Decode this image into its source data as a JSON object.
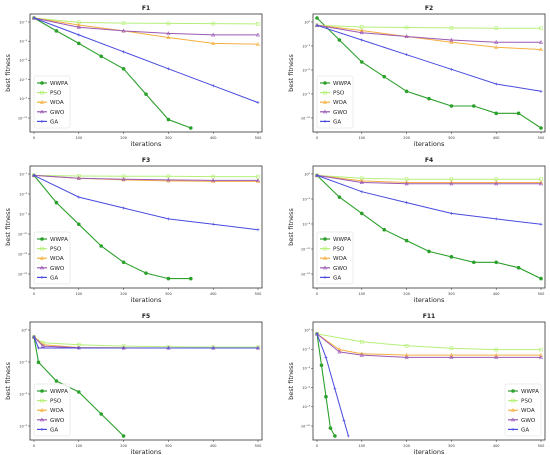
{
  "figure": {
    "series_names": [
      "WWPA",
      "PSO",
      "WOA",
      "GWO",
      "GA"
    ],
    "series_colors": [
      "#2ca02c",
      "#b6f07a",
      "#f5b041",
      "#9b59b6",
      "#4a4ae0"
    ],
    "xticks": [
      "0",
      "100",
      "200",
      "300",
      "400",
      "500"
    ],
    "xlabel": "iterations",
    "ylabel": "best fitness"
  },
  "chart_data": [
    {
      "type": "line",
      "title": "F1",
      "xlabel": "iterations",
      "ylabel": "best fitness",
      "yscale": "log",
      "xlim": [
        0,
        500
      ],
      "ylim": [
        1e-10,
        1000.0
      ],
      "legend": "lower-left",
      "yticks": [
        "10⁻¹",
        "10⁻³",
        "10⁻⁵",
        "10⁻⁷",
        "10⁻⁹",
        "10⁻¹¹"
      ],
      "series": [
        {
          "name": "WWPA",
          "x": [
            0,
            50,
            100,
            150,
            200,
            250,
            300,
            350
          ],
          "y": [
            1000,
            30,
            1,
            0.03,
            0.001,
            1e-06,
            1e-09,
            1e-10
          ]
        },
        {
          "name": "PSO",
          "x": [
            0,
            100,
            200,
            300,
            400,
            500
          ],
          "y": [
            1000,
            300,
            250,
            230,
            220,
            200
          ]
        },
        {
          "name": "WOA",
          "x": [
            0,
            100,
            200,
            300,
            400,
            500
          ],
          "y": [
            1000,
            150,
            30,
            5,
            1,
            0.8
          ]
        },
        {
          "name": "GWO",
          "x": [
            0,
            100,
            200,
            300,
            400,
            500
          ],
          "y": [
            1000,
            80,
            30,
            15,
            10,
            10
          ]
        },
        {
          "name": "GA",
          "x": [
            0,
            100,
            200,
            300,
            400,
            500
          ],
          "y": [
            1000,
            10,
            0.1,
            0.001,
            1e-05,
            1e-07
          ]
        }
      ]
    },
    {
      "type": "line",
      "title": "F2",
      "xlabel": "iterations",
      "ylabel": "best fitness",
      "yscale": "log",
      "xlim": [
        0,
        500
      ],
      "ylim": [
        1e-12,
        1000.0
      ],
      "legend": "lower-left",
      "yticks": [
        "10⁰",
        "10⁻³",
        "10⁻⁶",
        "10⁻⁹",
        "10⁻¹²"
      ],
      "series": [
        {
          "name": "WWPA",
          "x": [
            0,
            50,
            100,
            150,
            200,
            250,
            300,
            350,
            400,
            450,
            500
          ],
          "y": [
            1000,
            1,
            0.001,
            1e-05,
            1e-07,
            1e-08,
            1e-09,
            1e-09,
            1e-10,
            1e-10,
            1e-12
          ]
        },
        {
          "name": "PSO",
          "x": [
            0,
            100,
            200,
            300,
            400,
            500
          ],
          "y": [
            100,
            60,
            50,
            45,
            40,
            40
          ]
        },
        {
          "name": "WOA",
          "x": [
            0,
            100,
            200,
            300,
            400,
            500
          ],
          "y": [
            100,
            20,
            3,
            0.5,
            0.1,
            0.05
          ]
        },
        {
          "name": "GWO",
          "x": [
            0,
            100,
            200,
            300,
            400,
            500
          ],
          "y": [
            100,
            10,
            3,
            1,
            0.5,
            0.5
          ]
        },
        {
          "name": "GA",
          "x": [
            0,
            100,
            200,
            300,
            400,
            500
          ],
          "y": [
            100,
            1,
            0.01,
            0.0001,
            1e-06,
            1e-07
          ]
        }
      ]
    },
    {
      "type": "line",
      "title": "F3",
      "xlabel": "iterations",
      "ylabel": "best fitness",
      "yscale": "log",
      "xlim": [
        0,
        500
      ],
      "ylim": [
        1e-18,
        1000.0
      ],
      "legend": "lower-left",
      "yticks": [
        "10⁻¹",
        "10⁻⁴",
        "10⁻⁷",
        "10⁻¹⁰",
        "10⁻¹³",
        "10⁻¹⁶"
      ],
      "series": [
        {
          "name": "WWPA",
          "x": [
            0,
            50,
            100,
            150,
            200,
            250,
            300,
            350
          ],
          "y": [
            100,
            0.001,
            1e-07,
            1e-11,
            1e-14,
            1e-16,
            1e-17,
            1e-17
          ]
        },
        {
          "name": "PSO",
          "x": [
            0,
            100,
            200,
            300,
            400,
            500
          ],
          "y": [
            100,
            80,
            70,
            70,
            60,
            60
          ]
        },
        {
          "name": "WOA",
          "x": [
            0,
            100,
            200,
            300,
            400,
            500
          ],
          "y": [
            100,
            30,
            15,
            10,
            8,
            8
          ]
        },
        {
          "name": "GWO",
          "x": [
            0,
            100,
            200,
            300,
            400,
            500
          ],
          "y": [
            100,
            30,
            20,
            15,
            12,
            12
          ]
        },
        {
          "name": "GA",
          "x": [
            0,
            100,
            200,
            300,
            400,
            500
          ],
          "y": [
            100,
            0.01,
            0.0001,
            1e-06,
            1e-07,
            1e-08
          ]
        }
      ]
    },
    {
      "type": "line",
      "title": "F4",
      "xlabel": "iterations",
      "ylabel": "best fitness",
      "yscale": "log",
      "xlim": [
        0,
        500
      ],
      "ylim": [
        1e-19,
        100.0
      ],
      "legend": "lower-left",
      "yticks": [
        "10⁰",
        "10⁻⁴",
        "10⁻⁸",
        "10⁻¹²",
        "10⁻¹⁶"
      ],
      "series": [
        {
          "name": "WWPA",
          "x": [
            0,
            50,
            100,
            150,
            200,
            250,
            300,
            350,
            400,
            450,
            500
          ],
          "y": [
            10,
            0.001,
            1e-06,
            1e-09,
            1e-11,
            1e-13,
            1e-14,
            1e-15,
            1e-15,
            1e-16,
            1e-18
          ]
        },
        {
          "name": "PSO",
          "x": [
            0,
            100,
            200,
            300,
            400,
            500
          ],
          "y": [
            10,
            3,
            2,
            2,
            2,
            2
          ]
        },
        {
          "name": "WOA",
          "x": [
            0,
            100,
            200,
            300,
            400,
            500
          ],
          "y": [
            10,
            1,
            0.5,
            0.5,
            0.5,
            0.5
          ]
        },
        {
          "name": "GWO",
          "x": [
            0,
            100,
            200,
            300,
            400,
            500
          ],
          "y": [
            10,
            0.5,
            0.3,
            0.3,
            0.3,
            0.3
          ]
        },
        {
          "name": "GA",
          "x": [
            0,
            100,
            200,
            300,
            400,
            500
          ],
          "y": [
            10,
            0.01,
            0.0001,
            1e-06,
            1e-07,
            1e-08
          ]
        }
      ]
    },
    {
      "type": "line",
      "title": "F5",
      "xlabel": "iterations",
      "ylabel": "best fitness",
      "yscale": "log",
      "xlim": [
        0,
        500
      ],
      "ylim": [
        1e-08,
        100.0
      ],
      "legend": "lower-left",
      "yticks": [
        "10⁰",
        "10⁻²",
        "10⁻⁴",
        "10⁻⁶"
      ],
      "series": [
        {
          "name": "WWPA",
          "x": [
            0,
            10,
            50,
            100,
            150,
            200
          ],
          "y": [
            10,
            0.05,
            0.001,
            0.0001,
            1e-06,
            1e-08
          ]
        },
        {
          "name": "PSO",
          "x": [
            0,
            20,
            100,
            200,
            300,
            400,
            500
          ],
          "y": [
            10,
            3,
            2,
            1.5,
            1.3,
            1.2,
            1.2
          ]
        },
        {
          "name": "WOA",
          "x": [
            0,
            20,
            100,
            200,
            300,
            400,
            500
          ],
          "y": [
            10,
            2,
            1.1,
            1.05,
            1,
            1,
            1
          ]
        },
        {
          "name": "GWO",
          "x": [
            0,
            20,
            100,
            200,
            300,
            400,
            500
          ],
          "y": [
            10,
            1.5,
            1.05,
            1,
            1,
            1,
            1
          ]
        },
        {
          "name": "GA",
          "x": [
            0,
            10,
            100,
            200,
            300,
            400,
            500
          ],
          "y": [
            10,
            1,
            1,
            1,
            1,
            1,
            1
          ]
        }
      ]
    },
    {
      "type": "line",
      "title": "F11",
      "xlabel": "iterations",
      "ylabel": "best fitness",
      "yscale": "log",
      "xlim": [
        0,
        500
      ],
      "ylim": [
        1e-12,
        100.0
      ],
      "legend": "lower-right",
      "yticks": [
        "10⁰",
        "10⁻²",
        "10⁻⁴",
        "10⁻⁶",
        "10⁻⁸",
        "10⁻¹⁰"
      ],
      "series": [
        {
          "name": "WWPA",
          "x": [
            0,
            10,
            20,
            30,
            40
          ],
          "y": [
            10,
            0.001,
            1e-07,
            1e-11,
            1e-12
          ]
        },
        {
          "name": "PSO",
          "x": [
            0,
            100,
            200,
            300,
            400,
            500
          ],
          "y": [
            10,
            1,
            0.3,
            0.15,
            0.1,
            0.1
          ]
        },
        {
          "name": "WOA",
          "x": [
            0,
            50,
            100,
            200,
            300,
            400,
            500
          ],
          "y": [
            10,
            0.1,
            0.03,
            0.02,
            0.02,
            0.02,
            0.02
          ]
        },
        {
          "name": "GWO",
          "x": [
            0,
            50,
            100,
            200,
            300,
            400,
            500
          ],
          "y": [
            10,
            0.05,
            0.02,
            0.01,
            0.01,
            0.01,
            0.01
          ]
        },
        {
          "name": "GA",
          "x": [
            0,
            20,
            40,
            60,
            70
          ],
          "y": [
            10,
            0.01,
            1e-06,
            1e-10,
            1e-12
          ]
        }
      ]
    }
  ]
}
